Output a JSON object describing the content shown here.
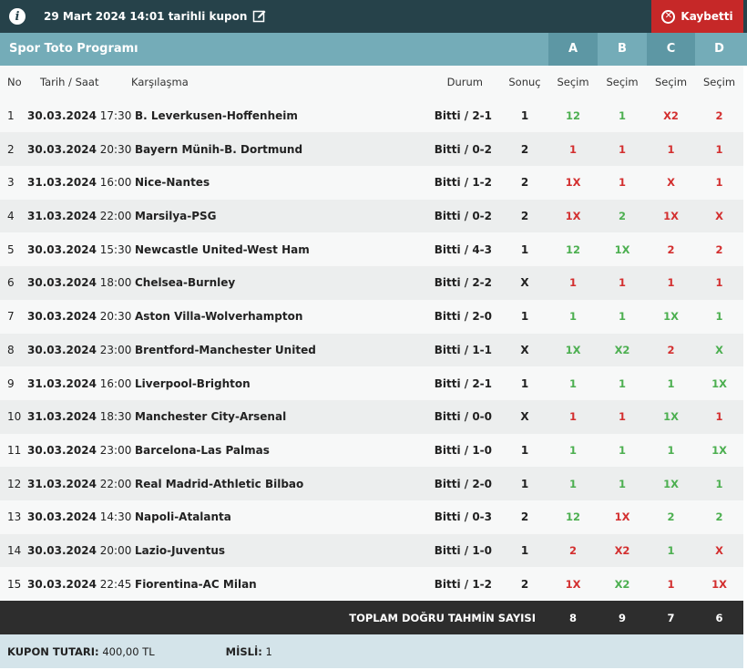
{
  "header": {
    "title": "29 Mart 2024 14:01 tarihli kupon",
    "status": "Kaybetti"
  },
  "program": {
    "title": "Spor Toto Programı",
    "columns": [
      "A",
      "B",
      "C",
      "D"
    ]
  },
  "table_headers": {
    "no": "No",
    "datetime": "Tarih / Saat",
    "match": "Karşılaşma",
    "status": "Durum",
    "result": "Sonuç",
    "pick_a": "Seçim",
    "pick_b": "Seçim",
    "pick_c": "Seçim",
    "pick_d": "Seçim"
  },
  "rows": [
    {
      "no": "1",
      "date": "30.03.2024",
      "time": "17:30",
      "match": "B. Leverkusen-Hoffenheim",
      "status": "Bitti / 2-1",
      "result": "1",
      "picks": [
        {
          "v": "12",
          "c": "green"
        },
        {
          "v": "1",
          "c": "green"
        },
        {
          "v": "X2",
          "c": "red"
        },
        {
          "v": "2",
          "c": "red"
        }
      ]
    },
    {
      "no": "2",
      "date": "30.03.2024",
      "time": "20:30",
      "match": "Bayern Münih-B. Dortmund",
      "status": "Bitti / 0-2",
      "result": "2",
      "picks": [
        {
          "v": "1",
          "c": "red"
        },
        {
          "v": "1",
          "c": "red"
        },
        {
          "v": "1",
          "c": "red"
        },
        {
          "v": "1",
          "c": "red"
        }
      ]
    },
    {
      "no": "3",
      "date": "31.03.2024",
      "time": "16:00",
      "match": "Nice-Nantes",
      "status": "Bitti / 1-2",
      "result": "2",
      "picks": [
        {
          "v": "1X",
          "c": "red"
        },
        {
          "v": "1",
          "c": "red"
        },
        {
          "v": "X",
          "c": "red"
        },
        {
          "v": "1",
          "c": "red"
        }
      ]
    },
    {
      "no": "4",
      "date": "31.03.2024",
      "time": "22:00",
      "match": "Marsilya-PSG",
      "status": "Bitti / 0-2",
      "result": "2",
      "picks": [
        {
          "v": "1X",
          "c": "red"
        },
        {
          "v": "2",
          "c": "green"
        },
        {
          "v": "1X",
          "c": "red"
        },
        {
          "v": "X",
          "c": "red"
        }
      ]
    },
    {
      "no": "5",
      "date": "30.03.2024",
      "time": "15:30",
      "match": "Newcastle United-West Ham",
      "status": "Bitti / 4-3",
      "result": "1",
      "picks": [
        {
          "v": "12",
          "c": "green"
        },
        {
          "v": "1X",
          "c": "green"
        },
        {
          "v": "2",
          "c": "red"
        },
        {
          "v": "2",
          "c": "red"
        }
      ]
    },
    {
      "no": "6",
      "date": "30.03.2024",
      "time": "18:00",
      "match": "Chelsea-Burnley",
      "status": "Bitti / 2-2",
      "result": "X",
      "picks": [
        {
          "v": "1",
          "c": "red"
        },
        {
          "v": "1",
          "c": "red"
        },
        {
          "v": "1",
          "c": "red"
        },
        {
          "v": "1",
          "c": "red"
        }
      ]
    },
    {
      "no": "7",
      "date": "30.03.2024",
      "time": "20:30",
      "match": "Aston Villa-Wolverhampton",
      "status": "Bitti / 2-0",
      "result": "1",
      "picks": [
        {
          "v": "1",
          "c": "green"
        },
        {
          "v": "1",
          "c": "green"
        },
        {
          "v": "1X",
          "c": "green"
        },
        {
          "v": "1",
          "c": "green"
        }
      ]
    },
    {
      "no": "8",
      "date": "30.03.2024",
      "time": "23:00",
      "match": "Brentford-Manchester United",
      "status": "Bitti / 1-1",
      "result": "X",
      "picks": [
        {
          "v": "1X",
          "c": "green"
        },
        {
          "v": "X2",
          "c": "green"
        },
        {
          "v": "2",
          "c": "red"
        },
        {
          "v": "X",
          "c": "green"
        }
      ]
    },
    {
      "no": "9",
      "date": "31.03.2024",
      "time": "16:00",
      "match": "Liverpool-Brighton",
      "status": "Bitti / 2-1",
      "result": "1",
      "picks": [
        {
          "v": "1",
          "c": "green"
        },
        {
          "v": "1",
          "c": "green"
        },
        {
          "v": "1",
          "c": "green"
        },
        {
          "v": "1X",
          "c": "green"
        }
      ]
    },
    {
      "no": "10",
      "date": "31.03.2024",
      "time": "18:30",
      "match": "Manchester City-Arsenal",
      "status": "Bitti / 0-0",
      "result": "X",
      "picks": [
        {
          "v": "1",
          "c": "red"
        },
        {
          "v": "1",
          "c": "red"
        },
        {
          "v": "1X",
          "c": "green"
        },
        {
          "v": "1",
          "c": "red"
        }
      ]
    },
    {
      "no": "11",
      "date": "30.03.2024",
      "time": "23:00",
      "match": "Barcelona-Las Palmas",
      "status": "Bitti / 1-0",
      "result": "1",
      "picks": [
        {
          "v": "1",
          "c": "green"
        },
        {
          "v": "1",
          "c": "green"
        },
        {
          "v": "1",
          "c": "green"
        },
        {
          "v": "1X",
          "c": "green"
        }
      ]
    },
    {
      "no": "12",
      "date": "31.03.2024",
      "time": "22:00",
      "match": "Real Madrid-Athletic Bilbao",
      "status": "Bitti / 2-0",
      "result": "1",
      "picks": [
        {
          "v": "1",
          "c": "green"
        },
        {
          "v": "1",
          "c": "green"
        },
        {
          "v": "1X",
          "c": "green"
        },
        {
          "v": "1",
          "c": "green"
        }
      ]
    },
    {
      "no": "13",
      "date": "30.03.2024",
      "time": "14:30",
      "match": "Napoli-Atalanta",
      "status": "Bitti / 0-3",
      "result": "2",
      "picks": [
        {
          "v": "12",
          "c": "green"
        },
        {
          "v": "1X",
          "c": "red"
        },
        {
          "v": "2",
          "c": "green"
        },
        {
          "v": "2",
          "c": "green"
        }
      ]
    },
    {
      "no": "14",
      "date": "30.03.2024",
      "time": "20:00",
      "match": "Lazio-Juventus",
      "status": "Bitti / 1-0",
      "result": "1",
      "picks": [
        {
          "v": "2",
          "c": "red"
        },
        {
          "v": "X2",
          "c": "red"
        },
        {
          "v": "1",
          "c": "green"
        },
        {
          "v": "X",
          "c": "red"
        }
      ]
    },
    {
      "no": "15",
      "date": "30.03.2024",
      "time": "22:45",
      "match": "Fiorentina-AC Milan",
      "status": "Bitti / 1-2",
      "result": "2",
      "picks": [
        {
          "v": "1X",
          "c": "red"
        },
        {
          "v": "X2",
          "c": "green"
        },
        {
          "v": "1",
          "c": "red"
        },
        {
          "v": "1X",
          "c": "red"
        }
      ]
    }
  ],
  "totals": {
    "label": "TOPLAM DOĞRU TAHMİN SAYISI",
    "values": [
      "8",
      "9",
      "7",
      "6"
    ]
  },
  "coupon": {
    "amount_label": "KUPON TUTARI:",
    "amount_value": "400,00 TL",
    "misli_label": "MİSLİ:",
    "misli_value": "1"
  },
  "colors": {
    "header_bg": "#26424a",
    "program_bg": "#74acb8",
    "lost_bg": "#c62828",
    "correct": "#4caf50",
    "wrong": "#d32f2f"
  }
}
